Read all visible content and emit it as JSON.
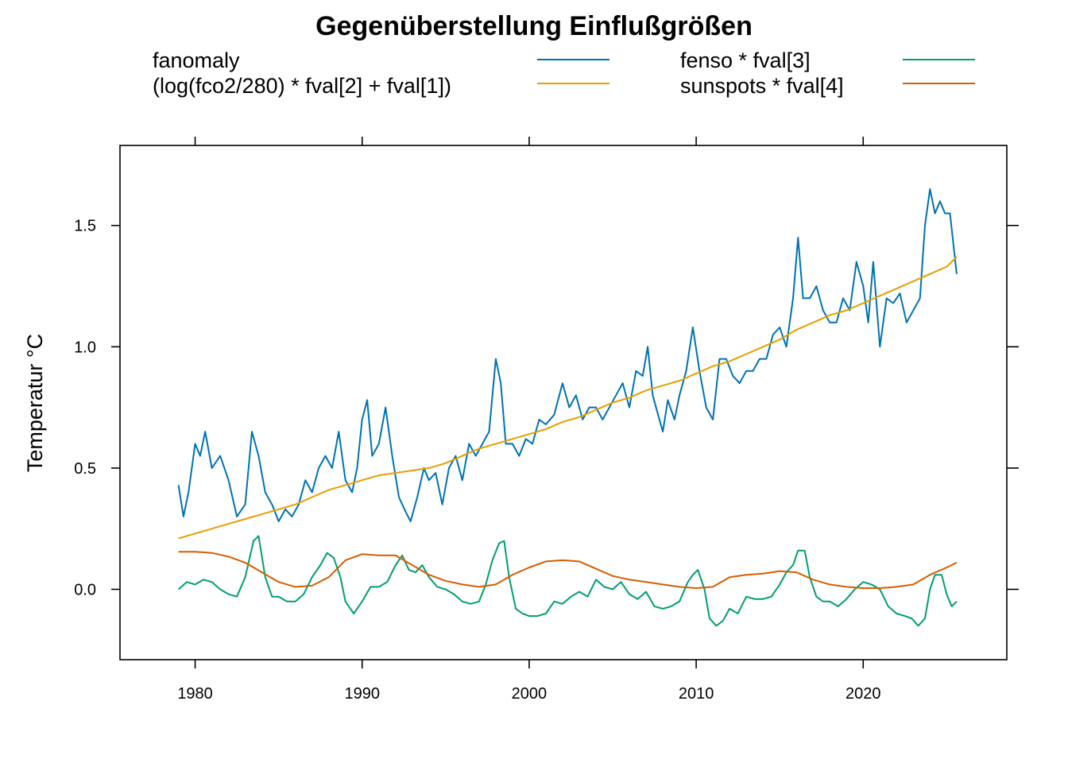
{
  "chart_data": {
    "type": "line",
    "title": "Gegenüberstellung Einflußgrößen",
    "xlabel": "",
    "ylabel": "Temperatur °C",
    "xlim": [
      1975.5,
      2028.6
    ],
    "ylim": [
      -0.29,
      1.83
    ],
    "xticks": [
      1980,
      1990,
      2000,
      2010,
      2020
    ],
    "xtick_labels": [
      "1980",
      "1990",
      "2000",
      "2010",
      "2020"
    ],
    "yticks": [
      0.0,
      0.5,
      1.0,
      1.5
    ],
    "ytick_labels": [
      "0.0",
      "0.5",
      "1.0",
      "1.5"
    ],
    "grid": false,
    "legend_position": "top",
    "series": [
      {
        "name": "fanomaly",
        "color": "#0072B2",
        "x": [
          1979.0,
          1979.3,
          1979.6,
          1980.0,
          1980.3,
          1980.6,
          1981.0,
          1981.5,
          1982.0,
          1982.5,
          1983.0,
          1983.4,
          1983.8,
          1984.2,
          1984.6,
          1985.0,
          1985.4,
          1985.8,
          1986.2,
          1986.6,
          1987.0,
          1987.4,
          1987.8,
          1988.2,
          1988.6,
          1989.0,
          1989.4,
          1989.7,
          1990.0,
          1990.3,
          1990.6,
          1991.0,
          1991.4,
          1991.8,
          1992.2,
          1992.6,
          1992.9,
          1993.3,
          1993.7,
          1994.0,
          1994.4,
          1994.8,
          1995.2,
          1995.6,
          1996.0,
          1996.4,
          1996.8,
          1997.2,
          1997.6,
          1998.0,
          1998.3,
          1998.6,
          1999.0,
          1999.4,
          1999.8,
          2000.2,
          2000.6,
          2001.0,
          2001.5,
          2002.0,
          2002.4,
          2002.8,
          2003.2,
          2003.6,
          2004.0,
          2004.4,
          2004.8,
          2005.2,
          2005.6,
          2006.0,
          2006.4,
          2006.8,
          2007.1,
          2007.4,
          2007.8,
          2008.0,
          2008.3,
          2008.7,
          2009.0,
          2009.4,
          2009.8,
          2010.2,
          2010.6,
          2011.0,
          2011.4,
          2011.8,
          2012.2,
          2012.6,
          2013.0,
          2013.4,
          2013.8,
          2014.2,
          2014.6,
          2015.0,
          2015.4,
          2015.8,
          2016.1,
          2016.4,
          2016.8,
          2017.2,
          2017.6,
          2018.0,
          2018.4,
          2018.8,
          2019.2,
          2019.6,
          2020.0,
          2020.3,
          2020.6,
          2021.0,
          2021.4,
          2021.8,
          2022.2,
          2022.6,
          2023.0,
          2023.4,
          2023.7,
          2024.0,
          2024.3,
          2024.6,
          2024.9,
          2025.2,
          2025.6
        ],
        "values": [
          0.43,
          0.3,
          0.4,
          0.6,
          0.55,
          0.65,
          0.5,
          0.55,
          0.45,
          0.3,
          0.35,
          0.65,
          0.55,
          0.4,
          0.35,
          0.28,
          0.33,
          0.3,
          0.35,
          0.45,
          0.4,
          0.5,
          0.55,
          0.5,
          0.65,
          0.45,
          0.4,
          0.5,
          0.7,
          0.78,
          0.55,
          0.6,
          0.75,
          0.55,
          0.38,
          0.32,
          0.28,
          0.38,
          0.5,
          0.45,
          0.48,
          0.35,
          0.5,
          0.55,
          0.45,
          0.6,
          0.55,
          0.6,
          0.65,
          0.95,
          0.85,
          0.6,
          0.6,
          0.55,
          0.62,
          0.6,
          0.7,
          0.68,
          0.72,
          0.85,
          0.75,
          0.8,
          0.7,
          0.75,
          0.75,
          0.7,
          0.75,
          0.8,
          0.85,
          0.75,
          0.9,
          0.88,
          1.0,
          0.8,
          0.7,
          0.65,
          0.78,
          0.7,
          0.8,
          0.9,
          1.08,
          0.9,
          0.75,
          0.7,
          0.95,
          0.95,
          0.88,
          0.85,
          0.9,
          0.9,
          0.95,
          0.95,
          1.05,
          1.08,
          1.0,
          1.2,
          1.45,
          1.2,
          1.2,
          1.25,
          1.15,
          1.1,
          1.1,
          1.2,
          1.15,
          1.35,
          1.25,
          1.1,
          1.35,
          1.0,
          1.2,
          1.18,
          1.22,
          1.1,
          1.15,
          1.2,
          1.5,
          1.65,
          1.55,
          1.6,
          1.55,
          1.55,
          1.3
        ]
      },
      {
        "name": "(log(fco2/280) * fval[2] + fval[1])",
        "color": "#E69F00",
        "x": [
          1979.0,
          1980.0,
          1981.0,
          1982.0,
          1983.0,
          1984.0,
          1985.0,
          1986.0,
          1987.0,
          1988.0,
          1989.0,
          1990.0,
          1991.0,
          1992.0,
          1993.0,
          1994.0,
          1995.0,
          1996.0,
          1997.0,
          1998.0,
          1999.0,
          2000.0,
          2001.0,
          2002.0,
          2003.0,
          2004.0,
          2005.0,
          2006.0,
          2007.0,
          2008.0,
          2009.0,
          2010.0,
          2011.0,
          2012.0,
          2013.0,
          2014.0,
          2015.0,
          2016.0,
          2017.0,
          2018.0,
          2019.0,
          2020.0,
          2021.0,
          2022.0,
          2023.0,
          2024.0,
          2025.0,
          2025.6
        ],
        "values": [
          0.21,
          0.23,
          0.25,
          0.27,
          0.29,
          0.31,
          0.33,
          0.35,
          0.38,
          0.41,
          0.43,
          0.45,
          0.47,
          0.48,
          0.49,
          0.5,
          0.52,
          0.55,
          0.58,
          0.6,
          0.62,
          0.64,
          0.66,
          0.69,
          0.71,
          0.74,
          0.77,
          0.79,
          0.82,
          0.84,
          0.86,
          0.89,
          0.92,
          0.94,
          0.97,
          1.0,
          1.03,
          1.07,
          1.1,
          1.13,
          1.15,
          1.18,
          1.21,
          1.24,
          1.27,
          1.3,
          1.33,
          1.37
        ]
      },
      {
        "name": "fenso * fval[3]",
        "color": "#009E73",
        "x": [
          1979.0,
          1979.5,
          1980.0,
          1980.5,
          1981.0,
          1981.5,
          1982.0,
          1982.5,
          1983.0,
          1983.5,
          1983.8,
          1984.2,
          1984.6,
          1985.0,
          1985.5,
          1986.0,
          1986.5,
          1987.0,
          1987.5,
          1987.9,
          1988.3,
          1988.7,
          1989.0,
          1989.5,
          1990.0,
          1990.5,
          1991.0,
          1991.5,
          1992.0,
          1992.4,
          1992.8,
          1993.2,
          1993.6,
          1994.0,
          1994.5,
          1995.0,
          1995.5,
          1996.0,
          1996.5,
          1997.0,
          1997.4,
          1997.8,
          1998.2,
          1998.5,
          1998.8,
          1999.2,
          1999.6,
          2000.0,
          2000.5,
          2001.0,
          2001.5,
          2002.0,
          2002.5,
          2003.0,
          2003.5,
          2004.0,
          2004.5,
          2005.0,
          2005.5,
          2006.0,
          2006.5,
          2007.0,
          2007.5,
          2008.0,
          2008.5,
          2009.0,
          2009.5,
          2009.8,
          2010.1,
          2010.5,
          2010.8,
          2011.2,
          2011.6,
          2012.0,
          2012.5,
          2013.0,
          2013.5,
          2014.0,
          2014.5,
          2015.0,
          2015.4,
          2015.8,
          2016.1,
          2016.5,
          2016.8,
          2017.2,
          2017.6,
          2018.0,
          2018.5,
          2019.0,
          2019.5,
          2020.0,
          2020.5,
          2021.0,
          2021.5,
          2022.0,
          2022.5,
          2022.9,
          2023.3,
          2023.7,
          2024.0,
          2024.3,
          2024.7,
          2025.0,
          2025.3,
          2025.6
        ],
        "values": [
          0.0,
          0.03,
          0.02,
          0.04,
          0.03,
          0.0,
          -0.02,
          -0.03,
          0.05,
          0.2,
          0.22,
          0.05,
          -0.03,
          -0.03,
          -0.05,
          -0.05,
          -0.02,
          0.05,
          0.1,
          0.15,
          0.13,
          0.05,
          -0.05,
          -0.1,
          -0.05,
          0.01,
          0.01,
          0.03,
          0.1,
          0.14,
          0.08,
          0.07,
          0.1,
          0.05,
          0.01,
          0.0,
          -0.02,
          -0.05,
          -0.06,
          -0.05,
          0.02,
          0.12,
          0.19,
          0.2,
          0.05,
          -0.08,
          -0.1,
          -0.11,
          -0.11,
          -0.1,
          -0.05,
          -0.06,
          -0.03,
          -0.01,
          -0.03,
          0.04,
          0.01,
          0.0,
          0.03,
          -0.02,
          -0.04,
          -0.01,
          -0.07,
          -0.08,
          -0.07,
          -0.05,
          0.03,
          0.06,
          0.08,
          0.0,
          -0.12,
          -0.15,
          -0.13,
          -0.08,
          -0.1,
          -0.03,
          -0.04,
          -0.04,
          -0.03,
          0.02,
          0.07,
          0.1,
          0.16,
          0.16,
          0.05,
          -0.03,
          -0.05,
          -0.05,
          -0.07,
          -0.04,
          0.0,
          0.03,
          0.02,
          0.0,
          -0.07,
          -0.1,
          -0.11,
          -0.12,
          -0.15,
          -0.12,
          0.0,
          0.06,
          0.06,
          -0.02,
          -0.07,
          -0.05
        ]
      },
      {
        "name": "sunspots * fval[4]",
        "color": "#D55E00",
        "x": [
          1979.0,
          1980.0,
          1981.0,
          1982.0,
          1983.0,
          1984.0,
          1985.0,
          1986.0,
          1987.0,
          1988.0,
          1989.0,
          1990.0,
          1991.0,
          1992.0,
          1993.0,
          1994.0,
          1995.0,
          1996.0,
          1997.0,
          1998.0,
          1999.0,
          2000.0,
          2001.0,
          2002.0,
          2003.0,
          2004.0,
          2005.0,
          2006.0,
          2007.0,
          2008.0,
          2009.0,
          2010.0,
          2011.0,
          2012.0,
          2013.0,
          2014.0,
          2015.0,
          2016.0,
          2017.0,
          2018.0,
          2019.0,
          2020.0,
          2021.0,
          2022.0,
          2023.0,
          2024.0,
          2025.0,
          2025.6
        ],
        "values": [
          0.155,
          0.155,
          0.15,
          0.135,
          0.11,
          0.07,
          0.03,
          0.01,
          0.015,
          0.05,
          0.12,
          0.145,
          0.14,
          0.14,
          0.1,
          0.06,
          0.035,
          0.02,
          0.01,
          0.02,
          0.06,
          0.09,
          0.115,
          0.12,
          0.115,
          0.085,
          0.055,
          0.04,
          0.03,
          0.02,
          0.01,
          0.005,
          0.01,
          0.05,
          0.06,
          0.065,
          0.075,
          0.07,
          0.04,
          0.02,
          0.01,
          0.005,
          0.005,
          0.01,
          0.02,
          0.06,
          0.09,
          0.11
        ]
      }
    ]
  }
}
